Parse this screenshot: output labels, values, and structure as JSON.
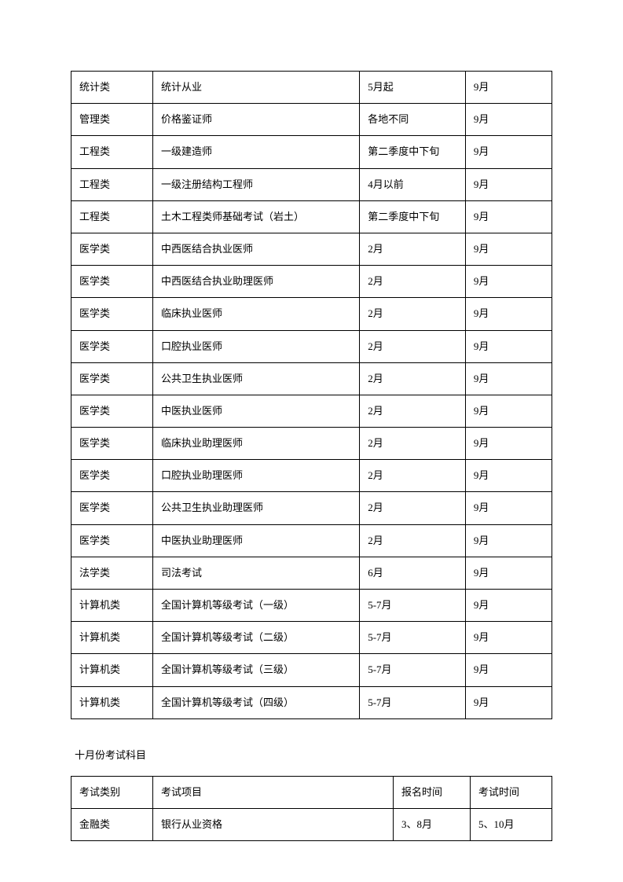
{
  "table1": {
    "rows": [
      [
        "统计类",
        "统计从业",
        "5月起",
        "9月"
      ],
      [
        "管理类",
        "价格鉴证师",
        "各地不同",
        "9月"
      ],
      [
        "工程类",
        "一级建造师",
        "第二季度中下旬",
        "9月"
      ],
      [
        "工程类",
        "一级注册结构工程师",
        "4月以前",
        "9月"
      ],
      [
        "工程类",
        "土木工程类师基础考试（岩土）",
        "第二季度中下旬",
        "9月"
      ],
      [
        "医学类",
        "中西医结合执业医师",
        "2月",
        "9月"
      ],
      [
        "医学类",
        "中西医结合执业助理医师",
        "2月",
        "9月"
      ],
      [
        "医学类",
        "临床执业医师",
        "2月",
        "9月"
      ],
      [
        "医学类",
        "口腔执业医师",
        "2月",
        "9月"
      ],
      [
        "医学类",
        "公共卫生执业医师",
        "2月",
        "9月"
      ],
      [
        "医学类",
        "中医执业医师",
        "2月",
        "9月"
      ],
      [
        "医学类",
        "临床执业助理医师",
        "2月",
        "9月"
      ],
      [
        "医学类",
        "口腔执业助理医师",
        "2月",
        "9月"
      ],
      [
        "医学类",
        "公共卫生执业助理医师",
        "2月",
        "9月"
      ],
      [
        "医学类",
        "中医执业助理医师",
        "2月",
        "9月"
      ],
      [
        "法学类",
        "司法考试",
        "6月",
        "9月"
      ],
      [
        "计算机类",
        "全国计算机等级考试（一级）",
        "5-7月",
        "9月"
      ],
      [
        "计算机类",
        "全国计算机等级考试（二级）",
        "5-7月",
        "9月"
      ],
      [
        "计算机类",
        "全国计算机等级考试（三级）",
        "5-7月",
        "9月"
      ],
      [
        "计算机类",
        "全国计算机等级考试（四级）",
        "5-7月",
        "9月"
      ]
    ]
  },
  "section_heading": "十月份考试科目",
  "table2": {
    "header": [
      "考试类别",
      "考试项目",
      "报名时间",
      "考试时间"
    ],
    "rows": [
      [
        "金融类",
        "银行从业资格",
        "3、8月",
        "5、10月"
      ]
    ]
  }
}
